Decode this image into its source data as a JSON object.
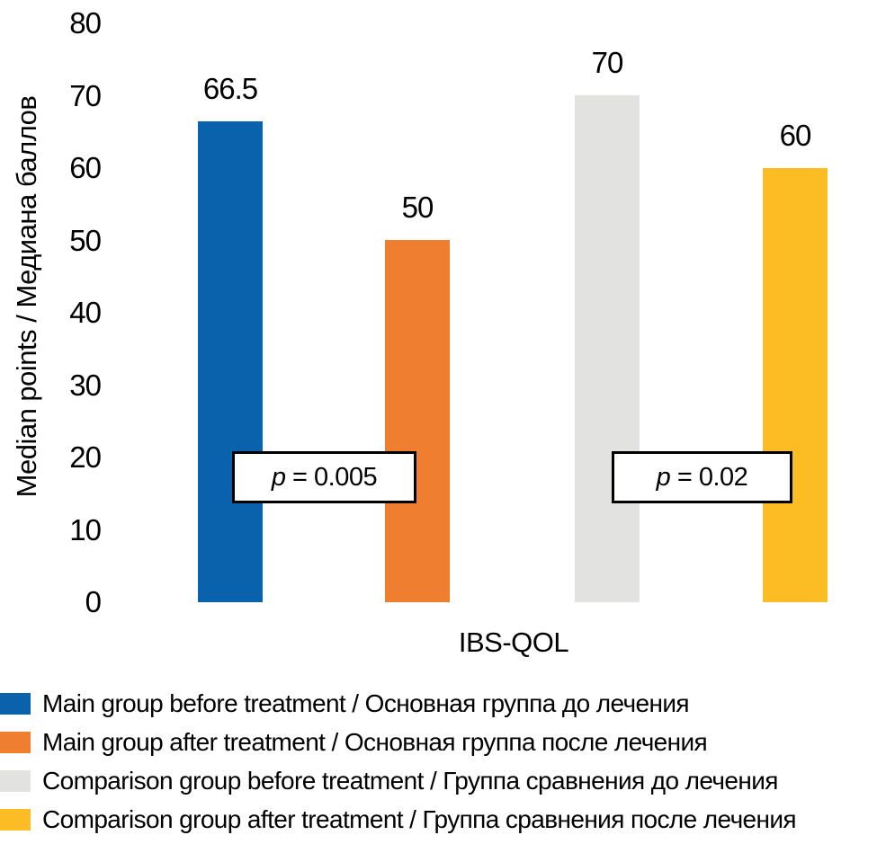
{
  "chart_data": {
    "type": "bar",
    "title": "",
    "xlabel": "IBS-QOL",
    "ylabel": "Median points / Медиана баллов",
    "ylim": [
      0,
      80
    ],
    "yticks": [
      0,
      10,
      20,
      30,
      40,
      50,
      60,
      70,
      80
    ],
    "grid": false,
    "legend_position": "bottom",
    "categories": [
      "IBS-QOL"
    ],
    "series": [
      {
        "name": "Main group before treatment / Основная группа до лечения",
        "value": 66.5,
        "label": "66.5",
        "color": "#0A61AC"
      },
      {
        "name": "Main group after treatment / Основная группа после лечения",
        "value": 50,
        "label": "50",
        "color": "#EF7E30"
      },
      {
        "name": "Comparison group before treatment / Группа сравнения до лечения",
        "value": 70,
        "label": "70",
        "color": "#E2E2E1"
      },
      {
        "name": "Comparison group after treatment / Группа сравнения после лечения",
        "value": 60,
        "label": "60",
        "color": "#FBBC24"
      }
    ],
    "annotations": [
      {
        "text": "p = 0.005",
        "p_symbol": "p",
        "rest": " = 0.005",
        "between": [
          0,
          1
        ]
      },
      {
        "text": "p = 0.02",
        "p_symbol": "p",
        "rest": " = 0.02",
        "between": [
          2,
          3
        ]
      }
    ]
  }
}
